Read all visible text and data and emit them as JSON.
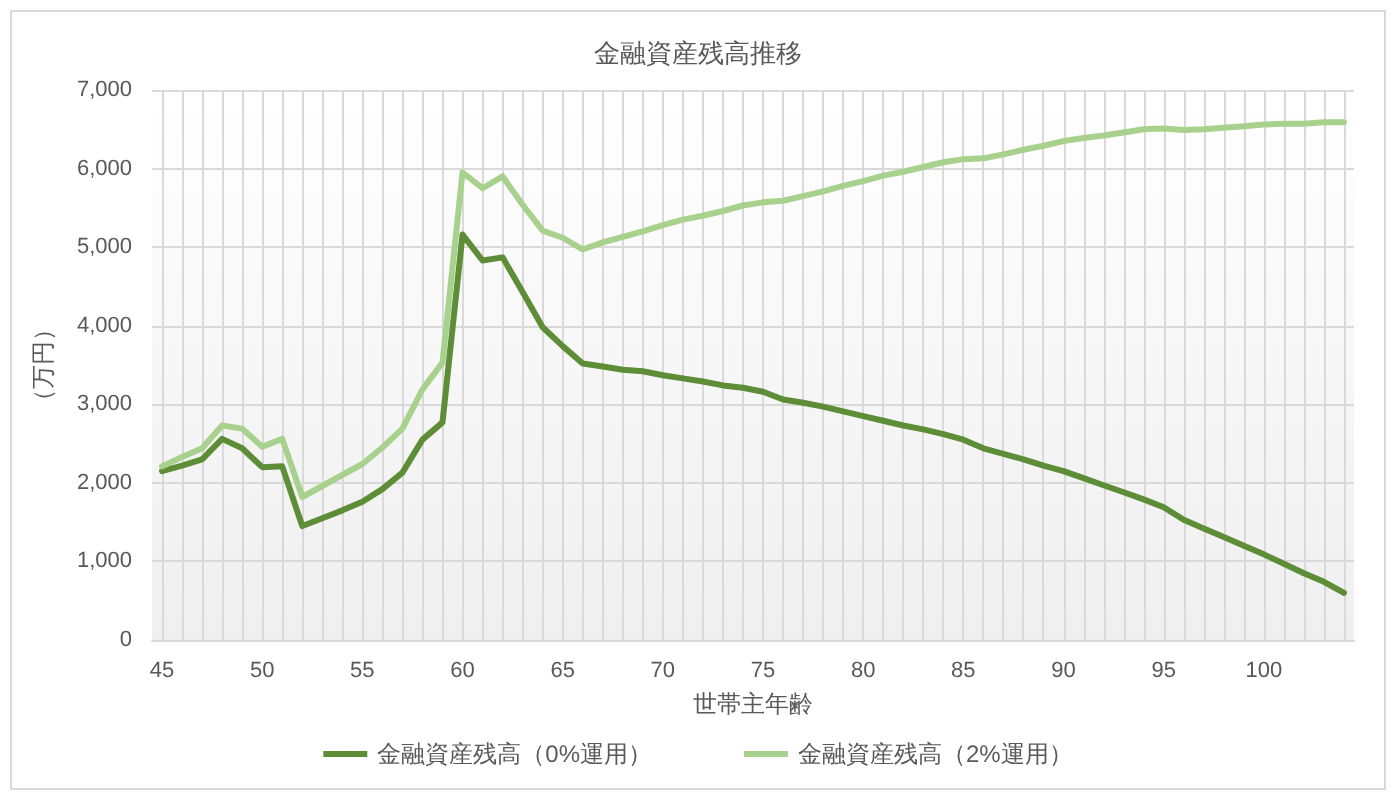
{
  "chart_data": {
    "type": "line",
    "title": "金融資産残高推移",
    "xlabel": "世帯主年齢",
    "ylabel": "（万円）",
    "categories": [
      "45",
      null,
      null,
      null,
      null,
      "50",
      null,
      null,
      null,
      null,
      "55",
      null,
      null,
      null,
      null,
      "60",
      null,
      null,
      null,
      null,
      "65",
      null,
      null,
      null,
      null,
      "70",
      null,
      null,
      null,
      null,
      "75",
      null,
      null,
      null,
      null,
      "80",
      null,
      null,
      null,
      null,
      "85",
      null,
      null,
      null,
      null,
      "90",
      null,
      null,
      null,
      null,
      "95",
      null,
      null,
      null,
      null,
      "100",
      null,
      null,
      null,
      null
    ],
    "series": [
      {
        "name": "金融資産残高（0%運用）",
        "color": "#5e8d37",
        "values": [
          2150,
          2220,
          2300,
          2560,
          2440,
          2200,
          2210,
          1450,
          1550,
          1650,
          1760,
          1920,
          2130,
          2550,
          2770,
          5160,
          4830,
          4870,
          4430,
          3980,
          3740,
          3520,
          3480,
          3440,
          3420,
          3370,
          3330,
          3290,
          3240,
          3210,
          3160,
          3060,
          3020,
          2970,
          2910,
          2850,
          2790,
          2730,
          2680,
          2620,
          2550,
          2440,
          2370,
          2300,
          2220,
          2150,
          2060,
          1970,
          1880,
          1790,
          1690,
          1530,
          1420,
          1310,
          1200,
          1090,
          970,
          850,
          740,
          600
        ]
      },
      {
        "name": "金融資産残高（2%運用）",
        "color": "#a9d18e",
        "values": [
          2210,
          2330,
          2440,
          2730,
          2690,
          2460,
          2560,
          1820,
          1960,
          2100,
          2240,
          2450,
          2690,
          3190,
          3530,
          5950,
          5750,
          5900,
          5540,
          5210,
          5120,
          4970,
          5060,
          5130,
          5200,
          5280,
          5350,
          5400,
          5460,
          5530,
          5570,
          5590,
          5650,
          5710,
          5780,
          5840,
          5910,
          5960,
          6020,
          6080,
          6120,
          6130,
          6180,
          6240,
          6290,
          6350,
          6390,
          6420,
          6460,
          6500,
          6510,
          6490,
          6500,
          6520,
          6540,
          6560,
          6570,
          6570,
          6590,
          6590
        ]
      }
    ],
    "ylim": [
      0,
      7000
    ],
    "yticks": [
      0,
      {
        "value": 1000,
        "label": "1,000"
      },
      {
        "value": 2000,
        "label": "2,000"
      },
      {
        "value": 3000,
        "label": "3,000"
      },
      {
        "value": 4000,
        "label": "4,000"
      },
      {
        "value": 5000,
        "label": "5,000"
      },
      {
        "value": 6000,
        "label": "6,000"
      },
      {
        "value": 7000,
        "label": "7,000"
      }
    ],
    "grid": true,
    "legend": "bottom",
    "marker": "none"
  }
}
